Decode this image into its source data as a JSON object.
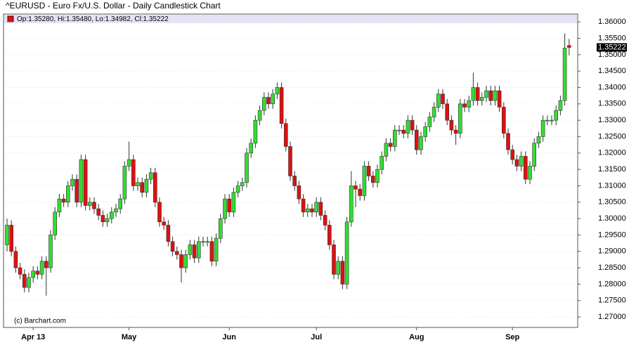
{
  "chart_data": {
    "type": "candlestick",
    "title": "^EURUSD - Euro Fx/U.S. Dollar - Daily Candlestick Chart",
    "ohlc_label": "Op:1.35280, Hi:1.35480, Lo:1.34982, Cl:1.35222",
    "watermark": "(c) Barchart.com",
    "last_price": {
      "value": 1.35222,
      "label": "1.35222"
    },
    "up_color": "#33dd33",
    "down_color": "#dd1111",
    "grid": true,
    "ylim": [
      1.2668,
      1.3624
    ],
    "yticks": [
      {
        "value": 1.27,
        "label": "1.27000"
      },
      {
        "value": 1.275,
        "label": "1.27500"
      },
      {
        "value": 1.28,
        "label": "1.28000"
      },
      {
        "value": 1.285,
        "label": "1.28500"
      },
      {
        "value": 1.29,
        "label": "1.29000"
      },
      {
        "value": 1.295,
        "label": "1.29500"
      },
      {
        "value": 1.3,
        "label": "1.30000"
      },
      {
        "value": 1.305,
        "label": "1.30500"
      },
      {
        "value": 1.31,
        "label": "1.31000"
      },
      {
        "value": 1.315,
        "label": "1.31500"
      },
      {
        "value": 1.32,
        "label": "1.32000"
      },
      {
        "value": 1.325,
        "label": "1.32500"
      },
      {
        "value": 1.33,
        "label": "1.33000"
      },
      {
        "value": 1.335,
        "label": "1.33500"
      },
      {
        "value": 1.34,
        "label": "1.34000"
      },
      {
        "value": 1.345,
        "label": "1.34500"
      },
      {
        "value": 1.35,
        "label": "1.35000"
      },
      {
        "value": 1.355,
        "label": "1.35500"
      },
      {
        "value": 1.36,
        "label": "1.36000"
      }
    ],
    "categories": [
      null,
      null,
      null,
      null,
      null,
      null,
      "Apr 13",
      null,
      null,
      null,
      null,
      null,
      null,
      null,
      null,
      null,
      null,
      null,
      null,
      null,
      null,
      null,
      null,
      null,
      null,
      null,
      null,
      null,
      "May",
      null,
      null,
      null,
      null,
      null,
      null,
      null,
      null,
      null,
      null,
      null,
      null,
      null,
      null,
      null,
      null,
      null,
      null,
      null,
      null,
      null,
      null,
      "Jun",
      null,
      null,
      null,
      null,
      null,
      null,
      null,
      null,
      null,
      null,
      null,
      null,
      null,
      null,
      null,
      null,
      null,
      null,
      null,
      "Jul",
      null,
      null,
      null,
      null,
      null,
      null,
      null,
      null,
      null,
      null,
      null,
      null,
      null,
      null,
      null,
      null,
      null,
      null,
      null,
      null,
      null,
      null,
      "Aug",
      null,
      null,
      null,
      null,
      null,
      null,
      null,
      null,
      null,
      null,
      null,
      null,
      null,
      null,
      null,
      null,
      null,
      null,
      null,
      null,
      null,
      "Sep",
      null,
      null,
      null,
      null,
      null,
      null,
      null,
      null,
      null,
      null,
      null,
      null,
      null
    ],
    "open": [
      1.292,
      1.298,
      1.29,
      1.285,
      1.283,
      1.279,
      1.282,
      1.284,
      1.283,
      1.287,
      1.285,
      1.295,
      1.302,
      1.306,
      1.305,
      1.31,
      1.312,
      1.305,
      1.318,
      1.304,
      1.305,
      1.303,
      1.301,
      1.299,
      1.3,
      1.302,
      1.303,
      1.306,
      1.316,
      1.318,
      1.31,
      1.311,
      1.308,
      1.312,
      1.314,
      1.305,
      1.299,
      1.298,
      1.293,
      1.29,
      1.289,
      1.285,
      1.289,
      1.292,
      1.288,
      1.293,
      1.293,
      1.293,
      1.287,
      1.294,
      1.3,
      1.306,
      1.302,
      1.308,
      1.31,
      1.311,
      1.32,
      1.323,
      1.33,
      1.333,
      1.337,
      1.335,
      1.338,
      1.34,
      1.329,
      1.322,
      1.313,
      1.31,
      1.306,
      1.302,
      1.303,
      1.302,
      1.305,
      1.301,
      1.298,
      1.292,
      1.283,
      1.287,
      1.28,
      1.299,
      1.31,
      1.309,
      1.307,
      1.316,
      1.313,
      1.311,
      1.315,
      1.319,
      1.323,
      1.322,
      1.327,
      1.327,
      1.326,
      1.33,
      1.327,
      1.321,
      1.325,
      1.328,
      1.331,
      1.334,
      1.338,
      1.335,
      1.33,
      1.327,
      1.326,
      1.335,
      1.334,
      1.336,
      1.34,
      1.336,
      1.337,
      1.339,
      1.336,
      1.339,
      1.334,
      1.326,
      1.321,
      1.318,
      1.316,
      1.319,
      1.312,
      1.316,
      1.323,
      1.325,
      1.33,
      1.33,
      1.33,
      1.333,
      1.336,
      1.3528
    ],
    "high": [
      1.3,
      1.2995,
      1.2915,
      1.2865,
      1.2845,
      1.2835,
      1.2855,
      1.2855,
      1.2885,
      1.2885,
      1.2965,
      1.3035,
      1.3075,
      1.3075,
      1.3115,
      1.3135,
      1.3135,
      1.3195,
      1.3195,
      1.3065,
      1.3065,
      1.3045,
      1.3025,
      1.3015,
      1.3035,
      1.3045,
      1.3075,
      1.3175,
      1.3235,
      1.3195,
      1.3125,
      1.3125,
      1.3135,
      1.3155,
      1.3155,
      1.3065,
      1.3005,
      1.2995,
      1.2945,
      1.2915,
      1.2905,
      1.2905,
      1.2935,
      1.2935,
      1.2945,
      1.2945,
      1.2945,
      1.2945,
      1.2955,
      1.3015,
      1.3075,
      1.3075,
      1.3095,
      1.3115,
      1.3125,
      1.3215,
      1.3245,
      1.3315,
      1.3345,
      1.3385,
      1.3385,
      1.3395,
      1.3415,
      1.3415,
      1.3305,
      1.3235,
      1.3145,
      1.3115,
      1.3075,
      1.3045,
      1.3045,
      1.3065,
      1.3065,
      1.3025,
      1.2995,
      1.2935,
      1.2885,
      1.2885,
      1.3005,
      1.3145,
      1.3115,
      1.3105,
      1.3175,
      1.3175,
      1.3145,
      1.3165,
      1.3205,
      1.3245,
      1.3245,
      1.3285,
      1.3285,
      1.3285,
      1.3315,
      1.3315,
      1.3285,
      1.3265,
      1.3295,
      1.3325,
      1.3355,
      1.3395,
      1.3395,
      1.3365,
      1.3315,
      1.3285,
      1.3365,
      1.3365,
      1.3375,
      1.3445,
      1.3415,
      1.3385,
      1.3405,
      1.3405,
      1.3405,
      1.3405,
      1.3355,
      1.3275,
      1.3225,
      1.3195,
      1.3205,
      1.3205,
      1.3175,
      1.3245,
      1.3265,
      1.3315,
      1.3315,
      1.3315,
      1.3345,
      1.3375,
      1.3565,
      1.3548
    ],
    "low": [
      1.29,
      1.2885,
      1.2835,
      1.2815,
      1.2775,
      1.2775,
      1.2805,
      1.2815,
      1.2815,
      1.2765,
      1.2835,
      1.2935,
      1.3005,
      1.3035,
      1.3035,
      1.3085,
      1.3035,
      1.3035,
      1.3025,
      1.3025,
      1.3015,
      1.2995,
      1.2975,
      1.2975,
      1.2985,
      1.3005,
      1.3015,
      1.3045,
      1.3145,
      1.3085,
      1.3085,
      1.3065,
      1.3065,
      1.3105,
      1.3035,
      1.2975,
      1.2965,
      1.2915,
      1.2885,
      1.2875,
      1.2805,
      1.2835,
      1.2875,
      1.2865,
      1.2865,
      1.2915,
      1.2915,
      1.2855,
      1.2855,
      1.2925,
      1.2985,
      1.3005,
      1.3005,
      1.3065,
      1.3085,
      1.3095,
      1.3185,
      1.3215,
      1.3285,
      1.3315,
      1.3335,
      1.3335,
      1.3365,
      1.3275,
      1.3205,
      1.3115,
      1.3085,
      1.3045,
      1.3005,
      1.3005,
      1.3005,
      1.3005,
      1.2995,
      1.2965,
      1.2905,
      1.2815,
      1.2815,
      1.2785,
      1.2785,
      1.2975,
      1.3035,
      1.3055,
      1.3055,
      1.3115,
      1.3095,
      1.3095,
      1.3135,
      1.3175,
      1.3205,
      1.3205,
      1.3255,
      1.3245,
      1.3245,
      1.3255,
      1.3195,
      1.3195,
      1.3235,
      1.3265,
      1.3295,
      1.3325,
      1.3335,
      1.3285,
      1.3255,
      1.3225,
      1.3245,
      1.3325,
      1.3325,
      1.3345,
      1.3345,
      1.3345,
      1.3355,
      1.3345,
      1.3345,
      1.3325,
      1.3245,
      1.3195,
      1.3165,
      1.3145,
      1.3145,
      1.3105,
      1.3105,
      1.3145,
      1.3215,
      1.3235,
      1.3285,
      1.3285,
      1.3285,
      1.3315,
      1.3345,
      1.34982
    ],
    "close": [
      1.298,
      1.29,
      1.285,
      1.283,
      1.279,
      1.282,
      1.284,
      1.283,
      1.287,
      1.285,
      1.295,
      1.302,
      1.306,
      1.305,
      1.31,
      1.312,
      1.305,
      1.318,
      1.304,
      1.305,
      1.303,
      1.301,
      1.299,
      1.3,
      1.302,
      1.303,
      1.306,
      1.316,
      1.318,
      1.31,
      1.311,
      1.308,
      1.312,
      1.314,
      1.305,
      1.299,
      1.298,
      1.293,
      1.29,
      1.289,
      1.285,
      1.289,
      1.292,
      1.288,
      1.293,
      1.293,
      1.293,
      1.287,
      1.294,
      1.3,
      1.306,
      1.302,
      1.308,
      1.31,
      1.311,
      1.32,
      1.323,
      1.33,
      1.333,
      1.337,
      1.335,
      1.338,
      1.34,
      1.329,
      1.322,
      1.313,
      1.31,
      1.306,
      1.302,
      1.303,
      1.302,
      1.305,
      1.301,
      1.298,
      1.292,
      1.283,
      1.287,
      1.28,
      1.299,
      1.31,
      1.309,
      1.307,
      1.316,
      1.313,
      1.311,
      1.315,
      1.319,
      1.323,
      1.322,
      1.327,
      1.327,
      1.326,
      1.33,
      1.327,
      1.321,
      1.325,
      1.328,
      1.331,
      1.334,
      1.338,
      1.335,
      1.33,
      1.327,
      1.326,
      1.335,
      1.334,
      1.336,
      1.34,
      1.336,
      1.337,
      1.339,
      1.336,
      1.339,
      1.334,
      1.326,
      1.321,
      1.318,
      1.316,
      1.319,
      1.312,
      1.316,
      1.323,
      1.325,
      1.33,
      1.33,
      1.33,
      1.333,
      1.336,
      1.352,
      1.35222
    ]
  }
}
